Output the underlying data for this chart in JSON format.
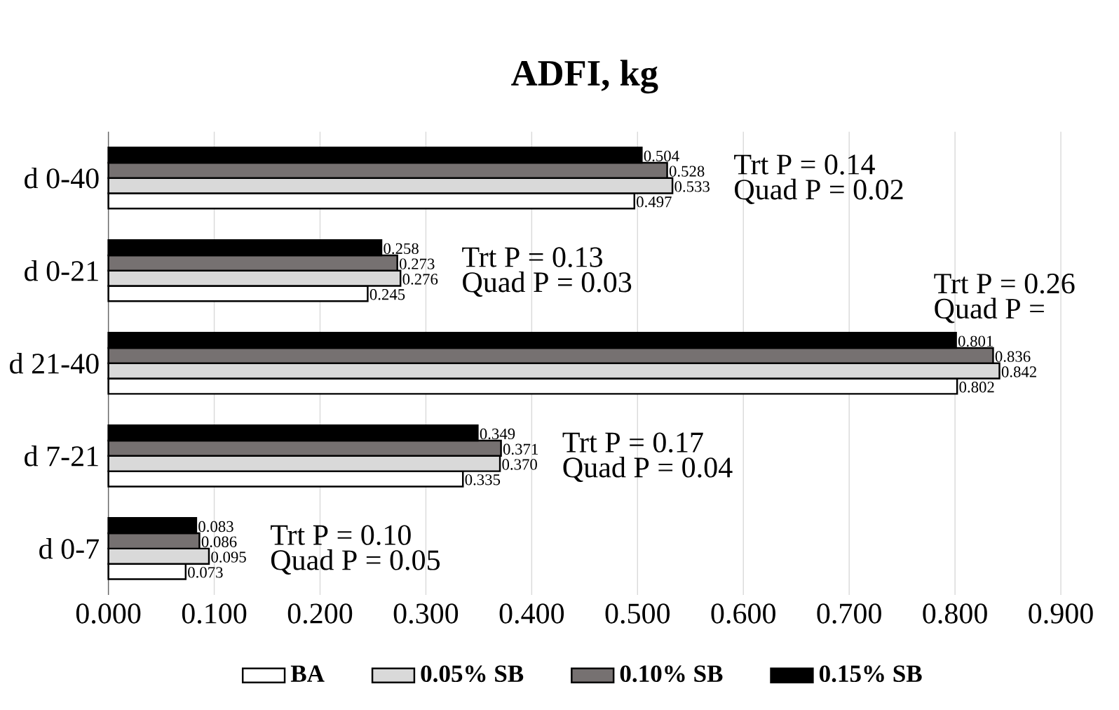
{
  "chart_data": {
    "type": "bar",
    "orientation": "horizontal",
    "title": "ADFI, kg",
    "categories": [
      "d 0-40",
      "d 0-21",
      "d 21-40",
      "d 7-21",
      "d 0-7"
    ],
    "series": [
      {
        "name": "BA",
        "color": "#ffffff",
        "values": [
          0.497,
          0.245,
          0.802,
          0.335,
          0.073
        ],
        "value_labels": [
          "0.497",
          "0.245",
          "0.802",
          "0.335",
          "0.073"
        ]
      },
      {
        "name": "0.05% SB",
        "color": "#d9d9d9",
        "values": [
          0.533,
          0.276,
          0.842,
          0.37,
          0.095
        ],
        "value_labels": [
          "0.533",
          "0.276",
          "0.842",
          "0.370",
          "0.095"
        ]
      },
      {
        "name": "0.10% SB",
        "color": "#767171",
        "values": [
          0.528,
          0.273,
          0.836,
          0.371,
          0.086
        ],
        "value_labels": [
          "0.528",
          "0.273",
          "0.836",
          "0.371",
          "0.086"
        ]
      },
      {
        "name": "0.15% SB",
        "color": "#000000",
        "values": [
          0.504,
          0.258,
          0.801,
          0.349,
          0.083
        ],
        "value_labels": [
          "0.504",
          "0.258",
          "0.801",
          "0.349",
          "0.083"
        ]
      }
    ],
    "xlim": [
      0,
      0.9
    ],
    "xticks": [
      {
        "value": 0,
        "label": "0.000"
      },
      {
        "value": 0.1,
        "label": "0.100"
      },
      {
        "value": 0.2,
        "label": "0.200"
      },
      {
        "value": 0.3,
        "label": "0.300"
      },
      {
        "value": 0.4,
        "label": "0.400"
      },
      {
        "value": 0.5,
        "label": "0.500"
      },
      {
        "value": 0.6,
        "label": "0.600"
      },
      {
        "value": 0.7,
        "label": "0.700"
      },
      {
        "value": 0.8,
        "label": "0.800"
      },
      {
        "value": 0.9,
        "label": "0.900"
      }
    ],
    "grid": "x",
    "legend": "bottom",
    "annotations": [
      "Trt P = 0.14",
      "Quad P = 0.02",
      "Trt P = 0.13",
      "Quad P = 0.03",
      "Trt P = 0.26",
      "Quad P =",
      "Trt P = 0.17",
      "Quad P = 0.04",
      "Trt P = 0.10",
      "Quad P = 0.05"
    ]
  }
}
